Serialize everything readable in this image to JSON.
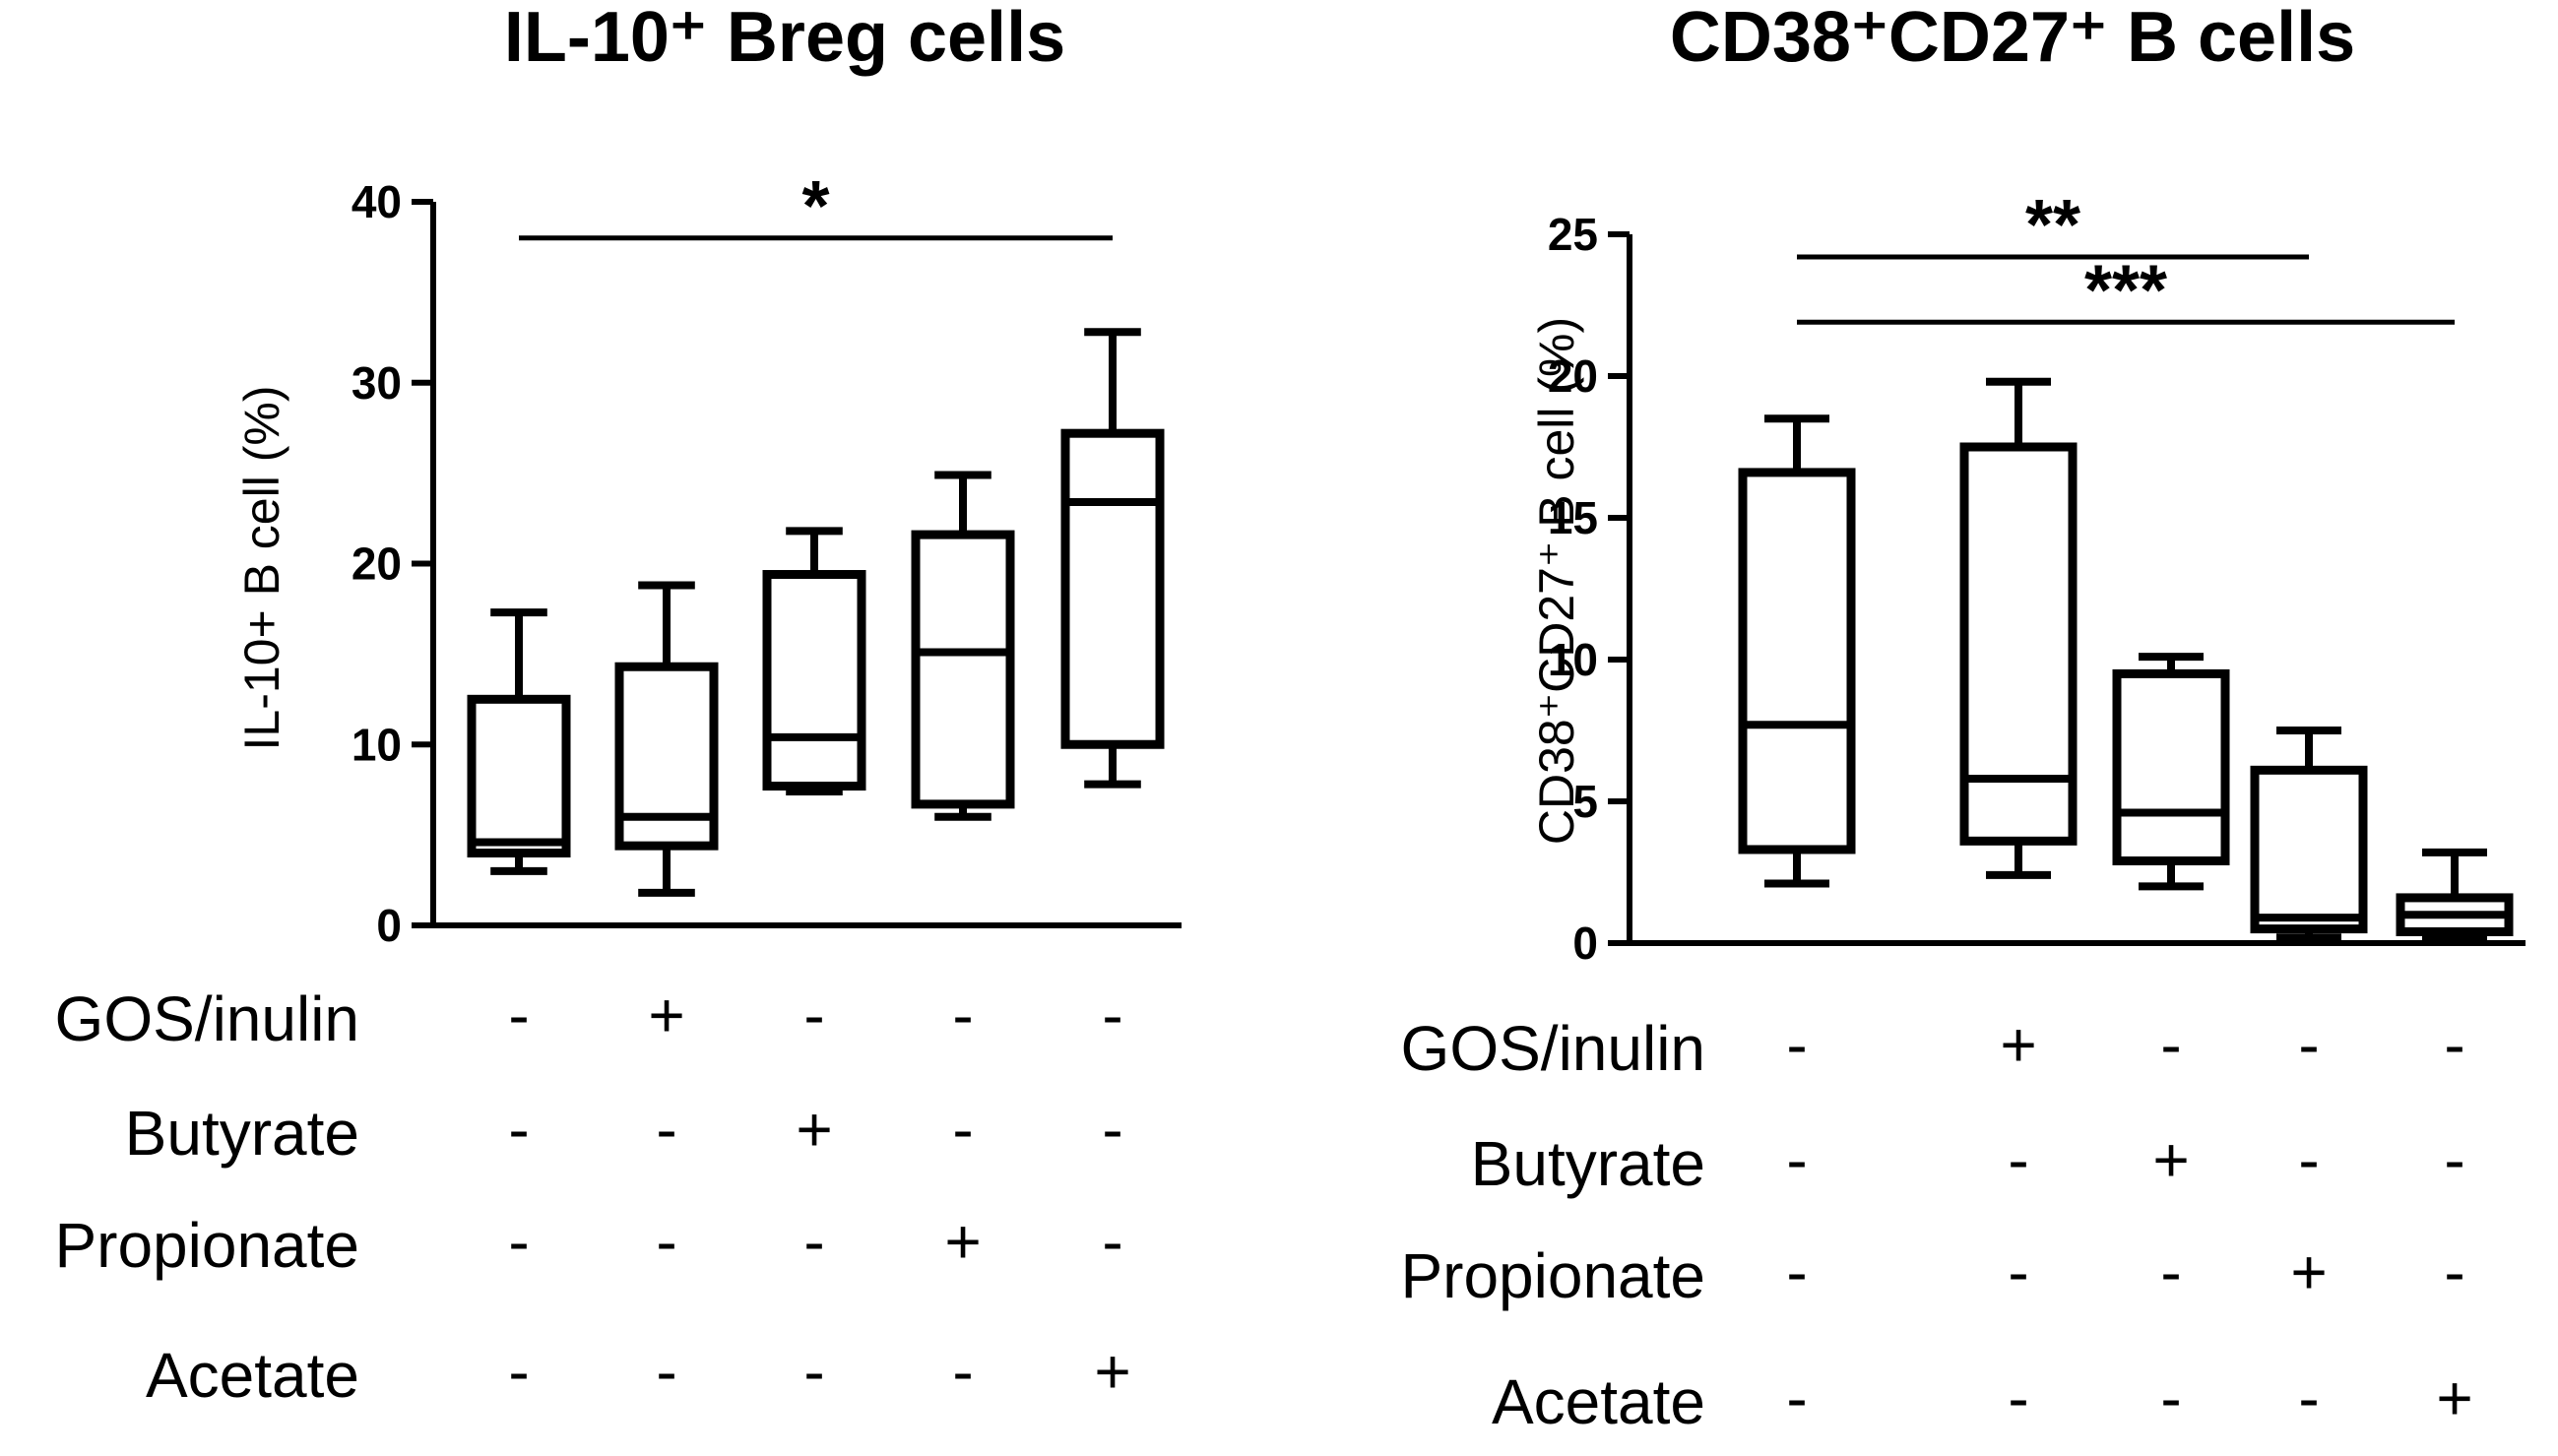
{
  "chart_data": [
    {
      "type": "box",
      "title": "IL-10⁺ Breg cells",
      "ylabel": "IL-10+ B cell (%)",
      "ylim": [
        0,
        40
      ],
      "yticks": [
        0,
        10,
        20,
        30,
        40
      ],
      "groups": [
        {
          "whisker_low": 3,
          "q1": 4,
          "median": 4.6,
          "q3": 12.5,
          "whisker_high": 17.3
        },
        {
          "whisker_low": 1.8,
          "q1": 4.4,
          "median": 6,
          "q3": 14.3,
          "whisker_high": 18.8
        },
        {
          "whisker_low": 7.4,
          "q1": 7.7,
          "median": 10.4,
          "q3": 19.4,
          "whisker_high": 21.8
        },
        {
          "whisker_low": 6,
          "q1": 6.7,
          "median": 15.1,
          "q3": 21.6,
          "whisker_high": 24.9
        },
        {
          "whisker_low": 7.8,
          "q1": 10,
          "median": 23.4,
          "q3": 27.2,
          "whisker_high": 32.8
        }
      ],
      "significance": [
        {
          "from": 1,
          "to": 5,
          "label": "*",
          "y": 38
        }
      ],
      "treatment_rows": [
        {
          "label": "GOS/inulin",
          "signs": [
            "-",
            "+",
            "-",
            "-",
            "-"
          ]
        },
        {
          "label": "Butyrate",
          "signs": [
            "-",
            "-",
            "+",
            "-",
            "-"
          ]
        },
        {
          "label": "Propionate",
          "signs": [
            "-",
            "-",
            "-",
            "+",
            "-"
          ]
        },
        {
          "label": "Acetate",
          "signs": [
            "-",
            "-",
            "-",
            "-",
            "+"
          ]
        }
      ]
    },
    {
      "type": "box",
      "title": "CD38⁺CD27⁺ B cells",
      "ylabel": "CD38⁺CD27⁺  B cell (%)",
      "ylim": [
        0,
        25
      ],
      "yticks": [
        0,
        5,
        10,
        15,
        20,
        25
      ],
      "groups": [
        {
          "whisker_low": 2.1,
          "q1": 3.3,
          "median": 7.7,
          "q3": 16.6,
          "whisker_high": 18.5
        },
        {
          "whisker_low": 2.4,
          "q1": 3.6,
          "median": 5.8,
          "q3": 17.5,
          "whisker_high": 19.8
        },
        {
          "whisker_low": 2,
          "q1": 2.9,
          "median": 4.6,
          "q3": 9.5,
          "whisker_high": 10.1
        },
        {
          "whisker_low": 0.2,
          "q1": 0.5,
          "median": 0.9,
          "q3": 6.1,
          "whisker_high": 7.5
        },
        {
          "whisker_low": 0.2,
          "q1": 0.4,
          "median": 1,
          "q3": 1.6,
          "whisker_high": 3.2
        }
      ],
      "significance": [
        {
          "from": 1,
          "to": 4,
          "label": "**",
          "y": 24.2
        },
        {
          "from": 1,
          "to": 5,
          "label": "***",
          "y": 21.9
        }
      ],
      "treatment_rows": [
        {
          "label": "GOS/inulin",
          "signs": [
            "-",
            "+",
            "-",
            "-",
            "-"
          ]
        },
        {
          "label": "Butyrate",
          "signs": [
            "-",
            "-",
            "+",
            "-",
            "-"
          ]
        },
        {
          "label": "Propionate",
          "signs": [
            "-",
            "-",
            "-",
            "+",
            "-"
          ]
        },
        {
          "label": "Acetate",
          "signs": [
            "-",
            "-",
            "-",
            "-",
            "+"
          ]
        }
      ]
    }
  ]
}
